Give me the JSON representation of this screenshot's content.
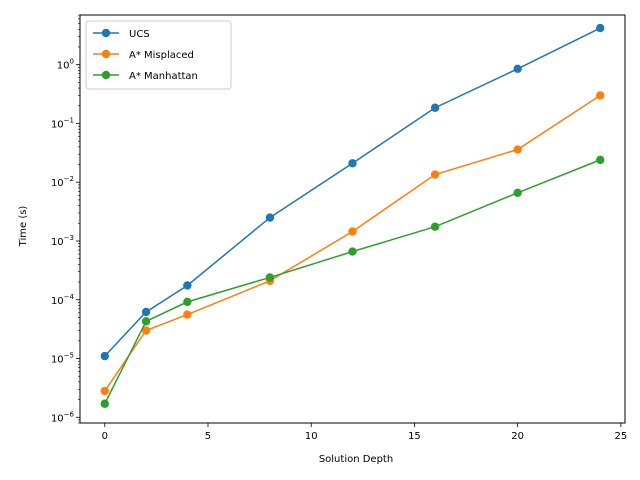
{
  "chart_data": {
    "type": "line",
    "xlabel": "Solution Depth",
    "ylabel": "Time (s)",
    "yscale": "log",
    "xlim": [
      -1.2,
      25.2
    ],
    "ylim": [
      8e-07,
      7
    ],
    "xticks": [
      0,
      5,
      10,
      15,
      20,
      25
    ],
    "xtick_labels": [
      "0",
      "5",
      "10",
      "15",
      "20",
      "25"
    ],
    "yticks": [
      1e-06,
      1e-05,
      0.0001,
      0.001,
      0.01,
      0.1,
      1
    ],
    "ytick_labels": [
      {
        "base": "10",
        "exp": "−6"
      },
      {
        "base": "10",
        "exp": "−5"
      },
      {
        "base": "10",
        "exp": "−4"
      },
      {
        "base": "10",
        "exp": "−3"
      },
      {
        "base": "10",
        "exp": "−2"
      },
      {
        "base": "10",
        "exp": "−1"
      },
      {
        "base": "10",
        "exp": "0"
      }
    ],
    "grid": false,
    "legend_position": "top-left",
    "x": [
      0,
      2,
      4,
      8,
      12,
      16,
      20,
      24
    ],
    "series": [
      {
        "name": "UCS",
        "color": "#1f77b4",
        "values": [
          1.1e-05,
          6.2e-05,
          0.000175,
          0.0025,
          0.021,
          0.185,
          0.85,
          4.2
        ]
      },
      {
        "name": "A* Misplaced",
        "color": "#ff7f0e",
        "values": [
          2.8e-06,
          3e-05,
          5.6e-05,
          0.00021,
          0.00145,
          0.0135,
          0.036,
          0.3
        ]
      },
      {
        "name": "A* Manhattan",
        "color": "#2ca02c",
        "values": [
          1.7e-06,
          4.3e-05,
          9.2e-05,
          0.00024,
          0.00066,
          0.00175,
          0.0066,
          0.024
        ]
      }
    ]
  }
}
